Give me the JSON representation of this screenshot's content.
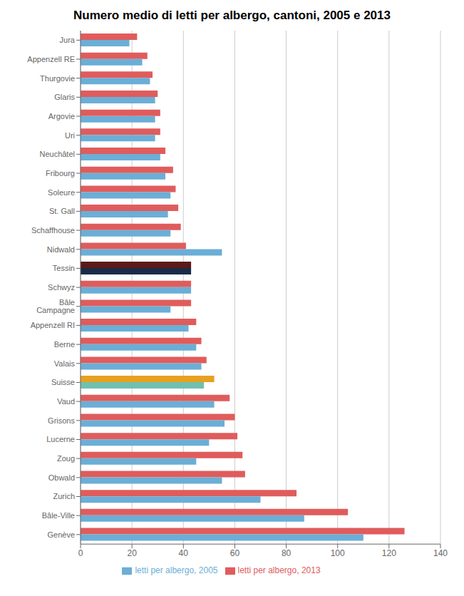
{
  "chart_data": {
    "type": "bar",
    "orientation": "horizontal",
    "title": "Numero medio di letti per albergo, cantoni, 2005 e 2013",
    "categories": [
      "Jura",
      "Appenzell RE",
      "Thurgovie",
      "Glaris",
      "Argovie",
      "Uri",
      "Neuchâtel",
      "Fribourg",
      "Soleure",
      "St. Gall",
      "Schaffhouse",
      "Nidwald",
      "Tessin",
      "Schwyz",
      "Bâle Campagne",
      "Appenzell RI",
      "Berne",
      "Valais",
      "Suisse",
      "Vaud",
      "Grisons",
      "Lucerne",
      "Zoug",
      "Obwald",
      "Zurich",
      "Bâle-Ville",
      "Genève"
    ],
    "series": [
      {
        "name": "letti per albergo, 2013",
        "color": "#e05c5c",
        "colors": [
          "#e05c5c",
          "#e05c5c",
          "#e05c5c",
          "#e05c5c",
          "#e05c5c",
          "#e05c5c",
          "#e05c5c",
          "#e05c5c",
          "#e05c5c",
          "#e05c5c",
          "#e05c5c",
          "#e05c5c",
          "#5a1a1a",
          "#e05c5c",
          "#e05c5c",
          "#e05c5c",
          "#e05c5c",
          "#e05c5c",
          "#e8a020",
          "#e05c5c",
          "#e05c5c",
          "#e05c5c",
          "#e05c5c",
          "#e05c5c",
          "#e05c5c",
          "#e05c5c",
          "#e05c5c"
        ],
        "values": [
          22,
          26,
          28,
          30,
          31,
          31,
          33,
          36,
          37,
          38,
          39,
          41,
          43,
          43,
          43,
          45,
          47,
          49,
          52,
          58,
          60,
          61,
          63,
          64,
          84,
          104,
          126
        ]
      },
      {
        "name": "letti per albergo, 2005",
        "color": "#6baed6",
        "colors": [
          "#6baed6",
          "#6baed6",
          "#6baed6",
          "#6baed6",
          "#6baed6",
          "#6baed6",
          "#6baed6",
          "#6baed6",
          "#6baed6",
          "#6baed6",
          "#6baed6",
          "#6baed6",
          "#1a2a4a",
          "#6baed6",
          "#6baed6",
          "#6baed6",
          "#6baed6",
          "#6baed6",
          "#70c0b0",
          "#6baed6",
          "#6baed6",
          "#6baed6",
          "#6baed6",
          "#6baed6",
          "#6baed6",
          "#6baed6",
          "#6baed6"
        ],
        "values": [
          19,
          24,
          27,
          29,
          29,
          29,
          31,
          33,
          35,
          34,
          35,
          55,
          43,
          43,
          35,
          42,
          45,
          47,
          48,
          52,
          56,
          50,
          45,
          55,
          70,
          87,
          110
        ]
      }
    ],
    "xlim": [
      0,
      140
    ],
    "xticks": [
      0,
      20,
      40,
      60,
      80,
      100,
      120,
      140
    ],
    "grid": true,
    "legend": "bottom"
  }
}
